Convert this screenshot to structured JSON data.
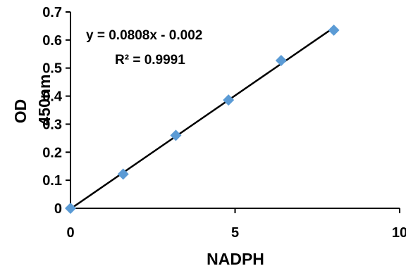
{
  "chart_data": {
    "type": "scatter",
    "title": "",
    "xlabel": "NADPH",
    "ylabel_main": "OD",
    "ylabel_sub": "450nm",
    "xlim": [
      0,
      10
    ],
    "ylim": [
      0,
      0.7
    ],
    "x_ticks": [
      0,
      5,
      10
    ],
    "x_tick_labels": [
      "0",
      "5",
      "10"
    ],
    "y_ticks": [
      0,
      0.1,
      0.2,
      0.3,
      0.4,
      0.5,
      0.6,
      0.7
    ],
    "y_tick_labels": [
      "0",
      "0.1",
      "0.2",
      "0.3",
      "0.4",
      "0.5",
      "0.6",
      "0.7"
    ],
    "grid": false,
    "legend": "none",
    "series": [
      {
        "marker": "diamond",
        "color": "#5B9BD5",
        "points": [
          {
            "x": 0,
            "y": 0.0
          },
          {
            "x": 1.6,
            "y": 0.122
          },
          {
            "x": 3.2,
            "y": 0.26
          },
          {
            "x": 4.8,
            "y": 0.386
          },
          {
            "x": 6.4,
            "y": 0.527
          },
          {
            "x": 8.0,
            "y": 0.635
          }
        ]
      }
    ],
    "trendline": {
      "slope": 0.0808,
      "intercept": -0.002,
      "x_range": [
        0,
        8.0
      ],
      "color": "#000000"
    },
    "annotations": {
      "equation": "y = 0.0808x - 0.002",
      "r2_label": "R² = 0.9991"
    }
  }
}
